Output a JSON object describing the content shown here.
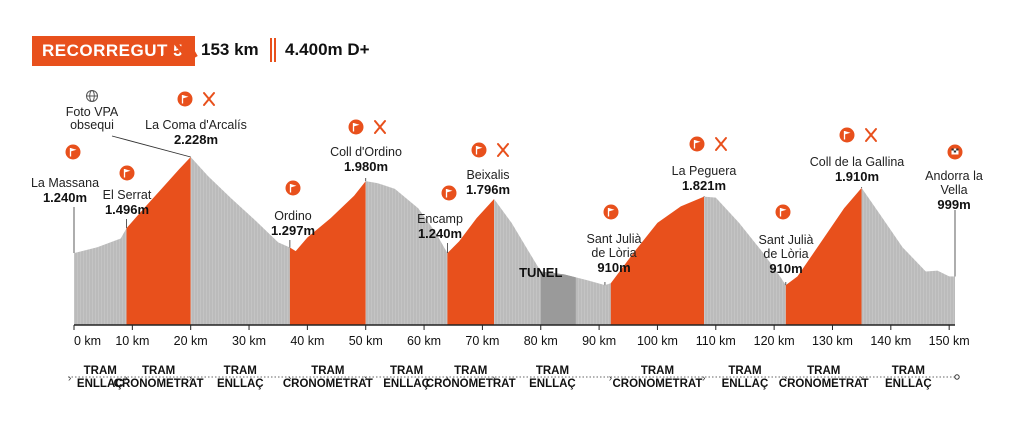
{
  "header": {
    "badge": "RECORREGUT 5",
    "distance": "153 km",
    "gain": "4.400m D+",
    "accent_color": "#e8501c"
  },
  "chart_data": {
    "type": "area",
    "xlim": [
      0,
      153
    ],
    "x_ticks": [
      0,
      10,
      20,
      30,
      40,
      50,
      60,
      70,
      80,
      90,
      100,
      110,
      120,
      130,
      140,
      150
    ],
    "x_tick_labels": [
      "0 km",
      "10 km",
      "20 km",
      "30 km",
      "40 km",
      "50 km",
      "60 km",
      "70 km",
      "80 km",
      "90 km",
      "100 km",
      "110 km",
      "120 km",
      "130 km",
      "140 km",
      "150 km"
    ],
    "ylim": [
      500,
      2300
    ],
    "profile": [
      [
        0,
        1240
      ],
      [
        4,
        1300
      ],
      [
        8,
        1390
      ],
      [
        9,
        1496
      ],
      [
        12,
        1700
      ],
      [
        15,
        1900
      ],
      [
        18,
        2100
      ],
      [
        20,
        2228
      ],
      [
        23,
        2030
      ],
      [
        27,
        1800
      ],
      [
        31,
        1580
      ],
      [
        35,
        1350
      ],
      [
        37,
        1297
      ],
      [
        38,
        1260
      ],
      [
        40,
        1400
      ],
      [
        44,
        1600
      ],
      [
        48,
        1830
      ],
      [
        50,
        1980
      ],
      [
        52,
        1960
      ],
      [
        55,
        1900
      ],
      [
        59,
        1700
      ],
      [
        62,
        1450
      ],
      [
        64,
        1240
      ],
      [
        66,
        1360
      ],
      [
        69,
        1600
      ],
      [
        72,
        1796
      ],
      [
        75,
        1550
      ],
      [
        78,
        1250
      ],
      [
        80,
        1050
      ],
      [
        84,
        1020
      ],
      [
        88,
        960
      ],
      [
        91,
        910
      ],
      [
        92,
        930
      ],
      [
        96,
        1250
      ],
      [
        100,
        1550
      ],
      [
        104,
        1720
      ],
      [
        108,
        1821
      ],
      [
        110,
        1810
      ],
      [
        114,
        1550
      ],
      [
        118,
        1250
      ],
      [
        121,
        1000
      ],
      [
        122,
        910
      ],
      [
        124,
        1000
      ],
      [
        128,
        1350
      ],
      [
        132,
        1700
      ],
      [
        135,
        1910
      ],
      [
        138,
        1650
      ],
      [
        142,
        1300
      ],
      [
        146,
        1050
      ],
      [
        148,
        1060
      ],
      [
        150,
        1000
      ],
      [
        151,
        999
      ]
    ],
    "segments": [
      {
        "label": "TRAM\nENLLAÇ",
        "start": 0,
        "end": 9,
        "type": "link"
      },
      {
        "label": "TRAM\nCRONOMETRAT",
        "start": 9,
        "end": 20,
        "type": "timed"
      },
      {
        "label": "TRAM\nENLLAÇ",
        "start": 20,
        "end": 37,
        "type": "link"
      },
      {
        "label": "TRAM\nCRONOMETRAT",
        "start": 37,
        "end": 50,
        "type": "timed"
      },
      {
        "label": "TRAM\nENLLAÇ",
        "start": 50,
        "end": 64,
        "type": "link"
      },
      {
        "label": "TRAM\nCRONOMETRAT",
        "start": 64,
        "end": 72,
        "type": "timed"
      },
      {
        "label": "TRAM\nENLLAÇ",
        "start": 72,
        "end": 92,
        "type": "link"
      },
      {
        "label": "TRAM\nCRONOMETRAT",
        "start": 92,
        "end": 108,
        "type": "timed"
      },
      {
        "label": "TRAM\nENLLAÇ",
        "start": 108,
        "end": 122,
        "type": "link"
      },
      {
        "label": "TRAM\nCRONOMETRAT",
        "start": 122,
        "end": 135,
        "type": "timed"
      },
      {
        "label": "TRAM\nENLLAÇ",
        "start": 135,
        "end": 151,
        "type": "link"
      }
    ],
    "tunnel": {
      "label": "TUNEL",
      "start": 80,
      "end": 86
    },
    "points": [
      {
        "name": "La Massana",
        "alt": "1.240m",
        "km": 0,
        "elev": 1240,
        "icons": [
          "flag"
        ]
      },
      {
        "name": "El Serrat",
        "alt": "1.496m",
        "km": 9,
        "elev": 1496,
        "icons": [
          "flag"
        ]
      },
      {
        "name": "La Coma d'Arcalís",
        "alt": "2.228m",
        "km": 20,
        "elev": 2228,
        "icons": [
          "flag",
          "food"
        ],
        "extra": "Foto VPA\nobsequi"
      },
      {
        "name": "Ordino",
        "alt": "1.297m",
        "km": 37,
        "elev": 1297,
        "icons": [
          "flag"
        ]
      },
      {
        "name": "Coll d'Ordino",
        "alt": "1.980m",
        "km": 50,
        "elev": 1980,
        "icons": [
          "flag",
          "food"
        ]
      },
      {
        "name": "Encamp",
        "alt": "1.240m",
        "km": 64,
        "elev": 1240,
        "icons": [
          "flag"
        ]
      },
      {
        "name": "Beixalis",
        "alt": "1.796m",
        "km": 72,
        "elev": 1796,
        "icons": [
          "flag",
          "food"
        ]
      },
      {
        "name": "Sant Julià\nde Lòria",
        "alt": "910m",
        "km": 91,
        "elev": 910,
        "icons": [
          "flag"
        ]
      },
      {
        "name": "La Peguera",
        "alt": "1.821m",
        "km": 108,
        "elev": 1821,
        "icons": [
          "flag",
          "food"
        ]
      },
      {
        "name": "Sant Julià\nde Lòria",
        "alt": "910m",
        "km": 122,
        "elev": 910,
        "icons": [
          "flag"
        ]
      },
      {
        "name": "Coll de la Gallina",
        "alt": "1.910m",
        "km": 135,
        "elev": 1910,
        "icons": [
          "flag",
          "food"
        ]
      },
      {
        "name": "Andorra la\nVella",
        "alt": "999m",
        "km": 151,
        "elev": 999,
        "icons": [
          "finish"
        ]
      }
    ],
    "colors": {
      "timed": "#e8501c",
      "link": "#c4c4c4",
      "tunnel": "#9a9a9a",
      "dark": "#3a3a3a"
    }
  }
}
